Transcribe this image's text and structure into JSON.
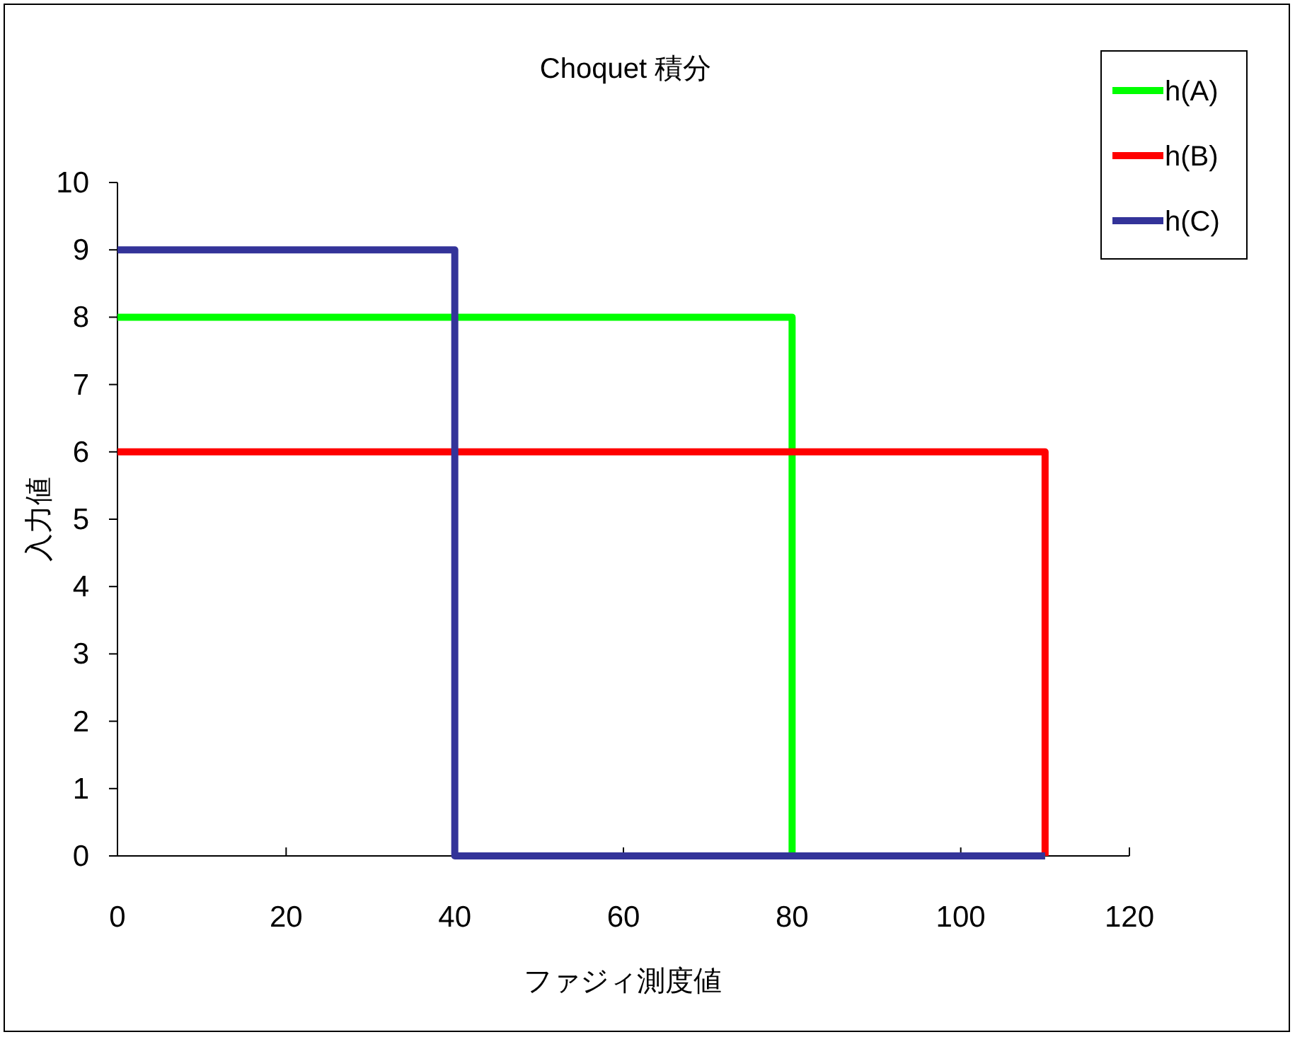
{
  "chart_data": {
    "type": "line",
    "title": "Choquet 積分",
    "xlabel": "ファジィ測度値",
    "ylabel": "入力値",
    "series": [
      {
        "name": "h(A)",
        "color": "#00ff00",
        "x": [
          0,
          80,
          80,
          110
        ],
        "values": [
          8,
          8,
          0,
          0
        ]
      },
      {
        "name": "h(B)",
        "color": "#ff0000",
        "x": [
          0,
          110,
          110
        ],
        "values": [
          6,
          6,
          0
        ]
      },
      {
        "name": "h(C)",
        "color": "#333399",
        "x": [
          0,
          40,
          40,
          110
        ],
        "values": [
          9,
          9,
          0,
          0
        ]
      }
    ],
    "xlim": [
      0,
      120
    ],
    "ylim": [
      0,
      10
    ],
    "xticks": [
      0,
      20,
      40,
      60,
      80,
      100,
      120
    ],
    "yticks": [
      0,
      1,
      2,
      3,
      4,
      5,
      6,
      7,
      8,
      9,
      10
    ],
    "legend": "top right",
    "grid": false,
    "marker": "none",
    "line_style": "solid"
  }
}
